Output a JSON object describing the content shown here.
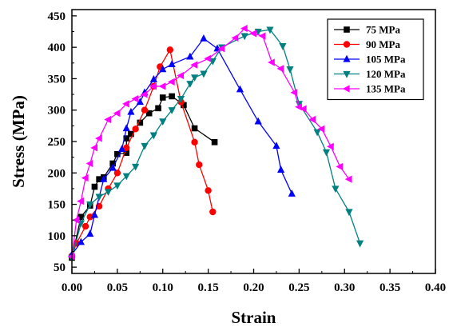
{
  "chart_data": {
    "type": "line",
    "xlabel": "Strain",
    "ylabel": "Stress (MPa)",
    "xlim": [
      0,
      0.4
    ],
    "ylim": [
      40,
      460
    ],
    "xticks": [
      "0.00",
      "0.05",
      "0.10",
      "0.15",
      "0.20",
      "0.25",
      "0.30",
      "0.35",
      "0.40"
    ],
    "yticks": [
      "50",
      "100",
      "150",
      "200",
      "250",
      "300",
      "350",
      "400",
      "450"
    ],
    "legend_position": "top-right",
    "series": [
      {
        "name": "75 MPa",
        "color": "#000000",
        "marker": "square",
        "points": [
          [
            0.0,
            65
          ],
          [
            0.01,
            130
          ],
          [
            0.02,
            148
          ],
          [
            0.025,
            178
          ],
          [
            0.03,
            190
          ],
          [
            0.035,
            193
          ],
          [
            0.045,
            215
          ],
          [
            0.05,
            230
          ],
          [
            0.06,
            232
          ],
          [
            0.06,
            255
          ],
          [
            0.065,
            262
          ],
          [
            0.075,
            280
          ],
          [
            0.085,
            295
          ],
          [
            0.095,
            303
          ],
          [
            0.1,
            320
          ],
          [
            0.11,
            322
          ],
          [
            0.123,
            308
          ],
          [
            0.135,
            271
          ],
          [
            0.157,
            249
          ]
        ]
      },
      {
        "name": "90 MPa",
        "color": "#ff0000",
        "marker": "circle",
        "points": [
          [
            0.0,
            68
          ],
          [
            0.005,
            88
          ],
          [
            0.015,
            115
          ],
          [
            0.02,
            130
          ],
          [
            0.03,
            147
          ],
          [
            0.04,
            175
          ],
          [
            0.05,
            200
          ],
          [
            0.06,
            240
          ],
          [
            0.07,
            270
          ],
          [
            0.08,
            300
          ],
          [
            0.09,
            338
          ],
          [
            0.097,
            369
          ],
          [
            0.108,
            396
          ],
          [
            0.12,
            313
          ],
          [
            0.135,
            249
          ],
          [
            0.14,
            213
          ],
          [
            0.15,
            172
          ],
          [
            0.155,
            138
          ]
        ]
      },
      {
        "name": "105 MPa",
        "color": "#0000ff",
        "marker": "triangle-up",
        "points": [
          [
            0.0,
            70
          ],
          [
            0.01,
            90
          ],
          [
            0.02,
            103
          ],
          [
            0.025,
            133
          ],
          [
            0.035,
            190
          ],
          [
            0.045,
            208
          ],
          [
            0.055,
            238
          ],
          [
            0.06,
            271
          ],
          [
            0.065,
            297
          ],
          [
            0.075,
            313
          ],
          [
            0.08,
            328
          ],
          [
            0.09,
            349
          ],
          [
            0.1,
            365
          ],
          [
            0.11,
            373
          ],
          [
            0.13,
            385
          ],
          [
            0.145,
            414
          ],
          [
            0.16,
            398
          ],
          [
            0.185,
            333
          ],
          [
            0.205,
            282
          ],
          [
            0.225,
            243
          ],
          [
            0.23,
            205
          ],
          [
            0.242,
            167
          ]
        ]
      },
      {
        "name": "120 MPa",
        "color": "#008080",
        "marker": "triangle-down",
        "points": [
          [
            0.0,
            65
          ],
          [
            0.01,
            120
          ],
          [
            0.02,
            150
          ],
          [
            0.03,
            162
          ],
          [
            0.04,
            170
          ],
          [
            0.05,
            180
          ],
          [
            0.06,
            195
          ],
          [
            0.07,
            210
          ],
          [
            0.08,
            243
          ],
          [
            0.09,
            260
          ],
          [
            0.1,
            282
          ],
          [
            0.11,
            300
          ],
          [
            0.12,
            318
          ],
          [
            0.13,
            342
          ],
          [
            0.135,
            352
          ],
          [
            0.145,
            358
          ],
          [
            0.155,
            378
          ],
          [
            0.165,
            400
          ],
          [
            0.19,
            418
          ],
          [
            0.205,
            425
          ],
          [
            0.218,
            428
          ],
          [
            0.232,
            402
          ],
          [
            0.24,
            365
          ],
          [
            0.25,
            310
          ],
          [
            0.27,
            265
          ],
          [
            0.28,
            233
          ],
          [
            0.29,
            175
          ],
          [
            0.305,
            138
          ],
          [
            0.317,
            88
          ]
        ]
      },
      {
        "name": "135 MPa",
        "color": "#ff00ff",
        "marker": "triangle-left",
        "points": [
          [
            0.0,
            67
          ],
          [
            0.005,
            125
          ],
          [
            0.01,
            155
          ],
          [
            0.015,
            192
          ],
          [
            0.02,
            215
          ],
          [
            0.025,
            240
          ],
          [
            0.03,
            255
          ],
          [
            0.04,
            285
          ],
          [
            0.05,
            295
          ],
          [
            0.06,
            310
          ],
          [
            0.07,
            318
          ],
          [
            0.08,
            325
          ],
          [
            0.09,
            338
          ],
          [
            0.1,
            338
          ],
          [
            0.11,
            345
          ],
          [
            0.12,
            355
          ],
          [
            0.135,
            372
          ],
          [
            0.15,
            382
          ],
          [
            0.165,
            398
          ],
          [
            0.18,
            415
          ],
          [
            0.19,
            430
          ],
          [
            0.2,
            422
          ],
          [
            0.21,
            418
          ],
          [
            0.22,
            376
          ],
          [
            0.23,
            366
          ],
          [
            0.245,
            328
          ],
          [
            0.25,
            305
          ],
          [
            0.255,
            302
          ],
          [
            0.265,
            285
          ],
          [
            0.275,
            270
          ],
          [
            0.285,
            242
          ],
          [
            0.295,
            210
          ],
          [
            0.305,
            190
          ]
        ]
      }
    ]
  }
}
